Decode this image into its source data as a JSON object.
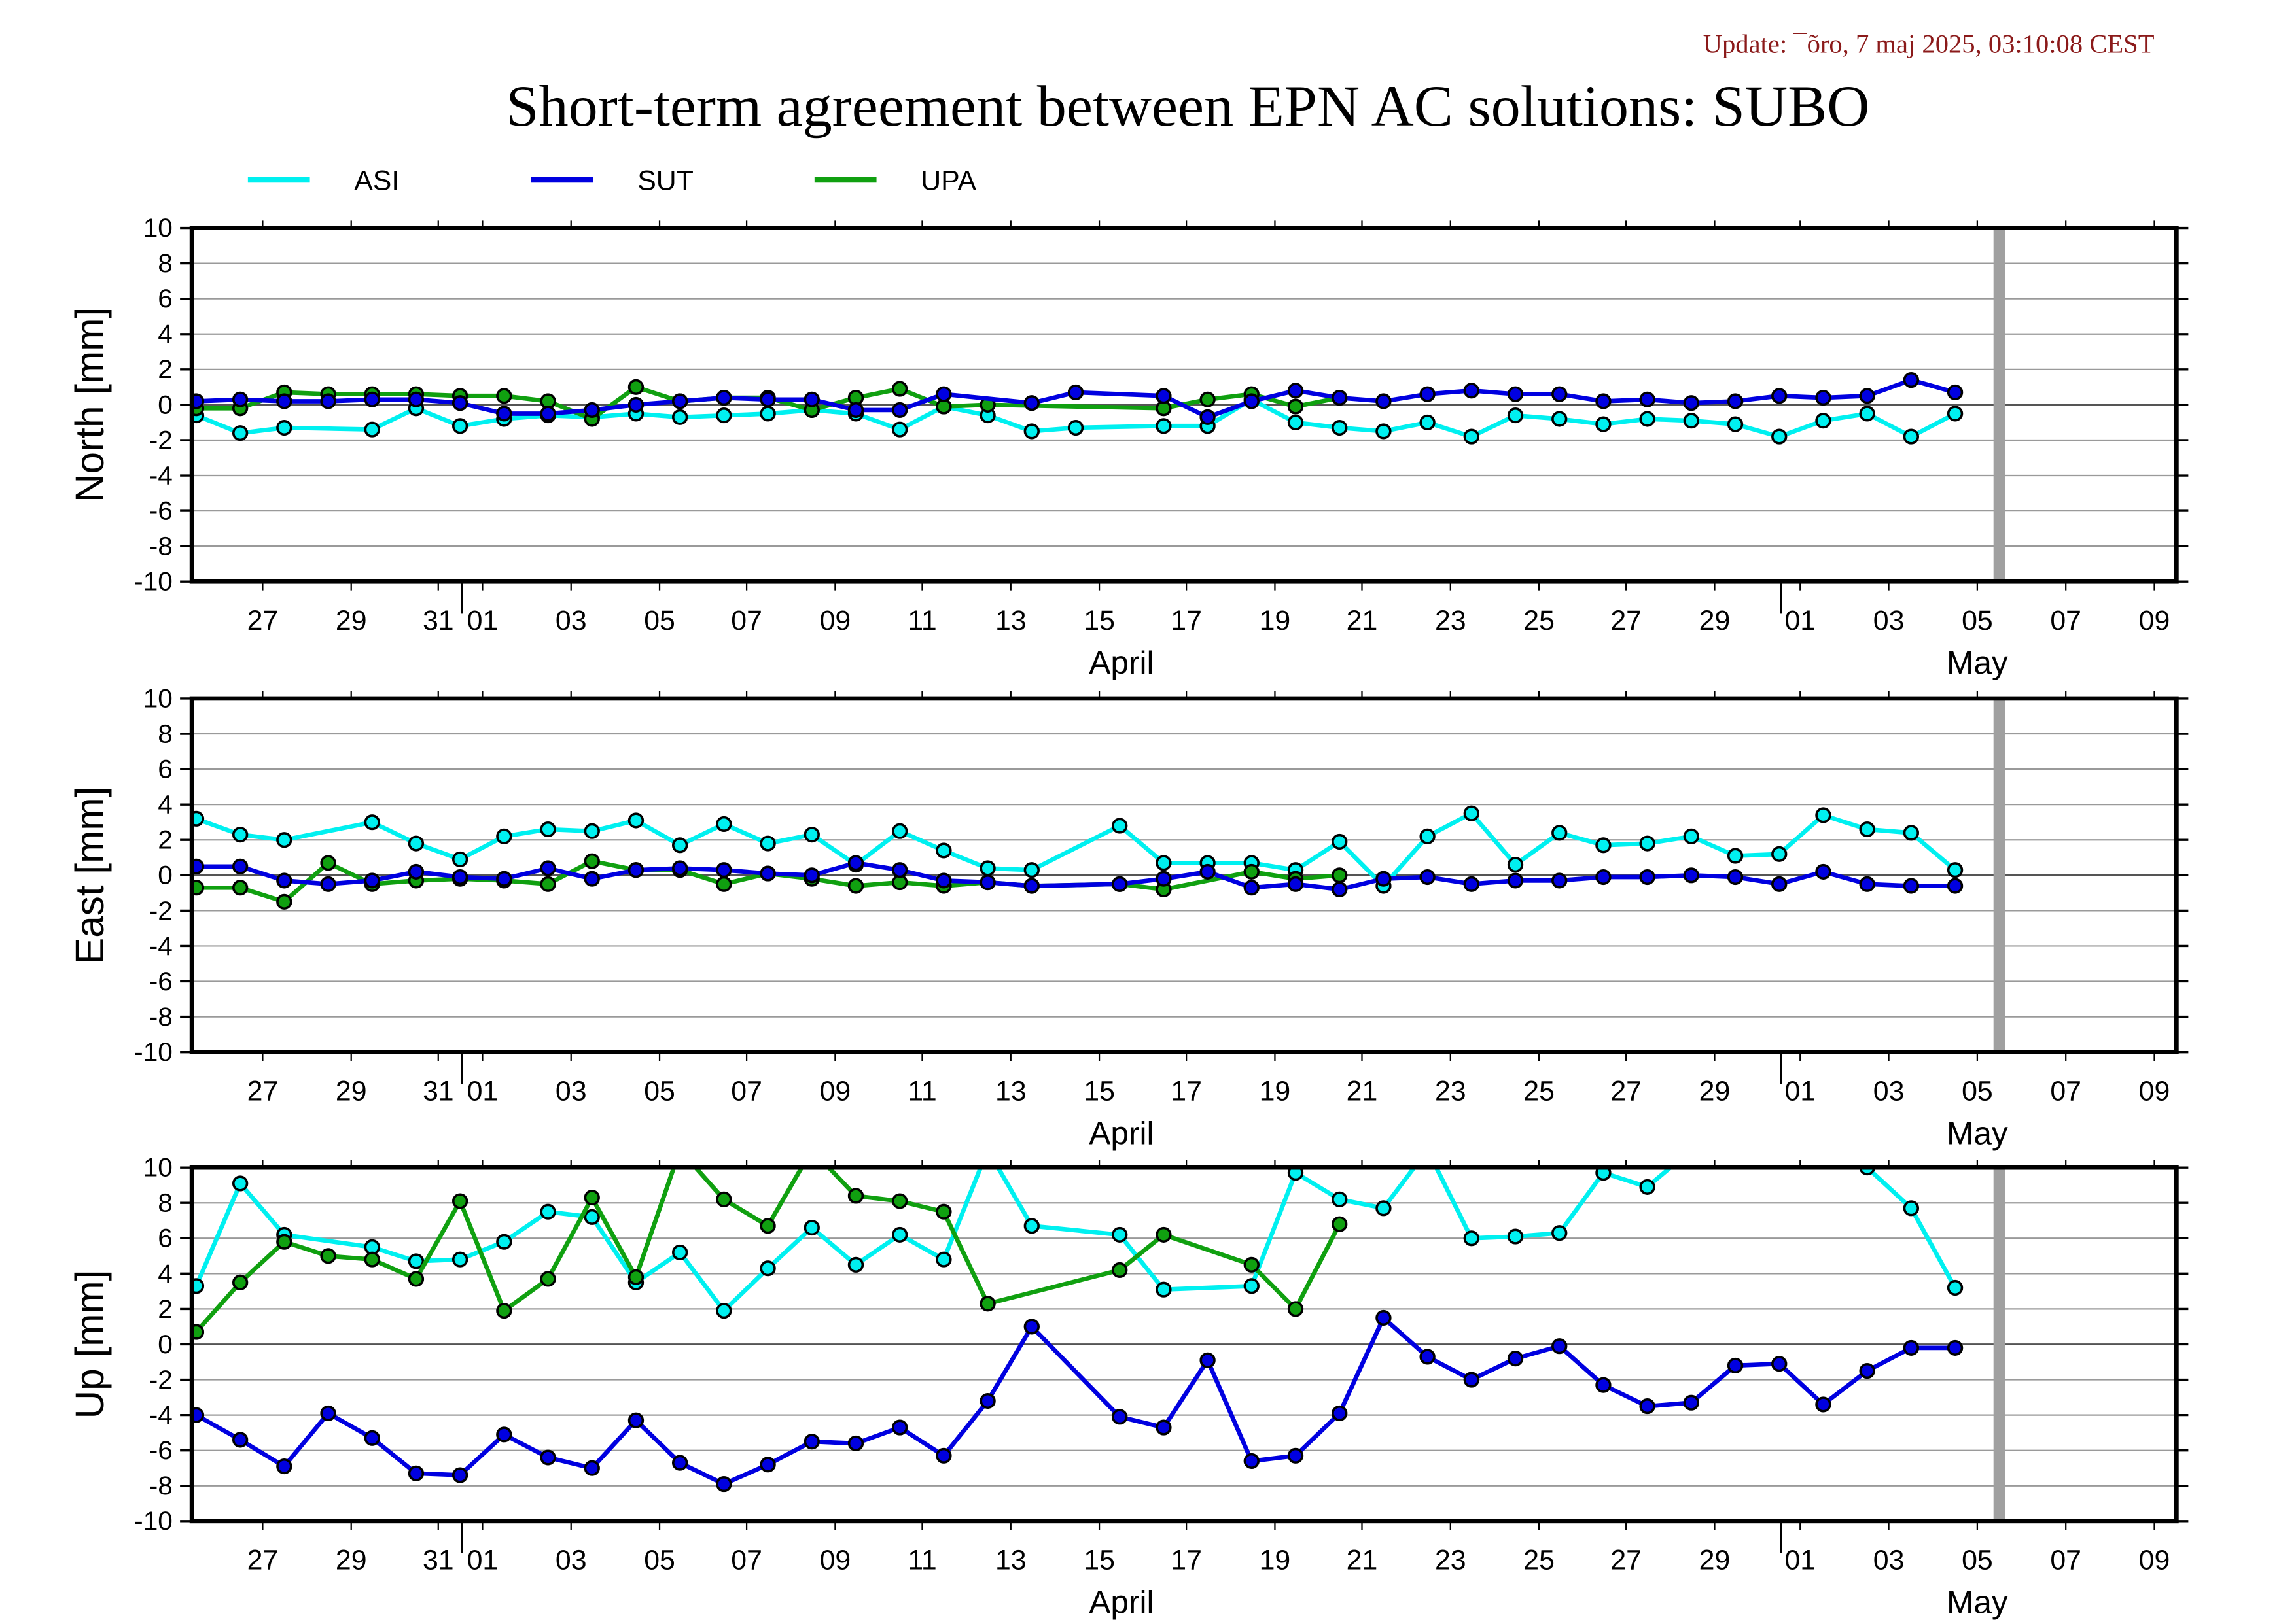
{
  "update_text": "Update: ¯õro, 7 maj 2025, 03:10:08 CEST",
  "title": "Short-term agreement between EPN AC solutions: SUBO",
  "colors": {
    "ASI": "#00f0f0",
    "SUT": "#0000e0",
    "UPA": "#10a010",
    "update": "#8b1a1a",
    "gray_bar": "#a0a0a0"
  },
  "legend": [
    {
      "name": "ASI",
      "color_key": "ASI"
    },
    {
      "name": "SUT",
      "color_key": "SUT"
    },
    {
      "name": "UPA",
      "color_key": "UPA"
    }
  ],
  "chart_data": [
    {
      "type": "line",
      "ylabel": "North [mm]",
      "ylim": [
        -10,
        10
      ],
      "yticks": [
        10,
        8,
        6,
        4,
        2,
        0,
        -2,
        -4,
        -6,
        -8,
        -10
      ],
      "xticks": [
        "27",
        "29",
        "31",
        "01",
        "03",
        "05",
        "07",
        "09",
        "11",
        "13",
        "15",
        "17",
        "19",
        "21",
        "23",
        "25",
        "27",
        "29",
        "01",
        "03",
        "05",
        "07",
        "09"
      ],
      "month_labels": [
        "April",
        "May"
      ],
      "series": [
        {
          "name": "ASI",
          "x": [
            0,
            1,
            2,
            4,
            5,
            6,
            7,
            8,
            9,
            10,
            11,
            12,
            13,
            14,
            15,
            16,
            17,
            18,
            19,
            20,
            22,
            23,
            24,
            25,
            26,
            27,
            28,
            29,
            30,
            31,
            32,
            33,
            34,
            35,
            36,
            37,
            38,
            39,
            40
          ],
          "y": [
            -0.6,
            -1.6,
            -1.3,
            -1.4,
            -0.2,
            -1.2,
            -0.8,
            -0.6,
            -0.7,
            -0.5,
            -0.7,
            -0.6,
            -0.5,
            -0.3,
            -0.5,
            -1.4,
            -0.1,
            -0.6,
            -1.5,
            -1.3,
            -1.2,
            -1.2,
            0.3,
            -1.0,
            -1.3,
            -1.5,
            -1.0,
            -1.8,
            -0.6,
            -0.8,
            -1.1,
            -0.8,
            -0.9,
            -1.1,
            -1.8,
            -0.9,
            -0.5,
            -1.8,
            -0.5
          ]
        },
        {
          "name": "SUT",
          "x": [
            0,
            1,
            2,
            3,
            4,
            5,
            6,
            7,
            8,
            9,
            10,
            11,
            12,
            13,
            14,
            15,
            16,
            17,
            19,
            20,
            22,
            23,
            24,
            25,
            26,
            27,
            28,
            29,
            30,
            31,
            32,
            33,
            34,
            35,
            36,
            37,
            38,
            39,
            40
          ],
          "y": [
            0.2,
            0.3,
            0.2,
            0.2,
            0.3,
            0.3,
            0.1,
            -0.5,
            -0.5,
            -0.3,
            0.0,
            0.2,
            0.4,
            0.3,
            0.3,
            -0.3,
            -0.3,
            0.6,
            0.1,
            0.7,
            0.5,
            -0.7,
            0.2,
            0.8,
            0.4,
            0.2,
            0.6,
            0.8,
            0.6,
            0.6,
            0.2,
            0.3,
            0.1,
            0.2,
            0.5,
            0.4,
            0.5,
            1.4,
            0.7
          ]
        },
        {
          "name": "UPA",
          "x": [
            0,
            1,
            2,
            3,
            4,
            5,
            6,
            7,
            8,
            9,
            10,
            11,
            12,
            13,
            14,
            15,
            16,
            17,
            18,
            22,
            23,
            24,
            25,
            26
          ],
          "y": [
            -0.2,
            -0.2,
            0.7,
            0.6,
            0.6,
            0.6,
            0.5,
            0.5,
            0.2,
            -0.8,
            1.0,
            0.2,
            0.4,
            0.4,
            -0.3,
            0.4,
            0.9,
            -0.1,
            0.0,
            -0.2,
            0.3,
            0.6,
            -0.1,
            0.4
          ]
        }
      ]
    },
    {
      "type": "line",
      "ylabel": "East [mm]",
      "ylim": [
        -10,
        10
      ],
      "yticks": [
        10,
        8,
        6,
        4,
        2,
        0,
        -2,
        -4,
        -6,
        -8,
        -10
      ],
      "xticks": [
        "27",
        "29",
        "31",
        "01",
        "03",
        "05",
        "07",
        "09",
        "11",
        "13",
        "15",
        "17",
        "19",
        "21",
        "23",
        "25",
        "27",
        "29",
        "01",
        "03",
        "05",
        "07",
        "09"
      ],
      "month_labels": [
        "April",
        "May"
      ],
      "series": [
        {
          "name": "ASI",
          "x": [
            0,
            1,
            2,
            4,
            5,
            6,
            7,
            8,
            9,
            10,
            11,
            12,
            13,
            14,
            15,
            16,
            17,
            18,
            19,
            21,
            22,
            23,
            24,
            25,
            26,
            27,
            28,
            29,
            30,
            31,
            32,
            33,
            34,
            35,
            36,
            37,
            38,
            39,
            40
          ],
          "y": [
            3.2,
            2.3,
            2.0,
            3.0,
            1.8,
            0.9,
            2.2,
            2.6,
            2.5,
            3.1,
            1.7,
            2.9,
            1.8,
            2.3,
            0.6,
            2.5,
            1.4,
            0.4,
            0.3,
            2.8,
            0.7,
            0.7,
            0.7,
            0.3,
            1.9,
            -0.6,
            2.2,
            3.5,
            0.6,
            2.4,
            1.7,
            1.8,
            2.2,
            1.1,
            1.2,
            3.4,
            2.6,
            2.4,
            0.3
          ]
        },
        {
          "name": "SUT",
          "x": [
            0,
            1,
            2,
            3,
            4,
            5,
            6,
            7,
            8,
            9,
            10,
            11,
            12,
            13,
            14,
            15,
            16,
            17,
            18,
            19,
            21,
            22,
            23,
            24,
            25,
            26,
            27,
            28,
            29,
            30,
            31,
            32,
            33,
            34,
            35,
            36,
            37,
            38,
            39,
            40
          ],
          "y": [
            0.5,
            0.5,
            -0.3,
            -0.5,
            -0.3,
            0.2,
            -0.1,
            -0.2,
            0.4,
            -0.2,
            0.3,
            0.4,
            0.3,
            0.1,
            0.0,
            0.7,
            0.3,
            -0.3,
            -0.4,
            -0.6,
            -0.5,
            -0.2,
            0.2,
            -0.7,
            -0.5,
            -0.8,
            -0.2,
            -0.1,
            -0.5,
            -0.3,
            -0.3,
            -0.1,
            -0.1,
            0.0,
            -0.1,
            -0.5,
            0.2,
            -0.5,
            -0.6,
            -0.6
          ]
        },
        {
          "name": "UPA",
          "x": [
            0,
            1,
            2,
            3,
            4,
            5,
            6,
            7,
            8,
            9,
            10,
            11,
            12,
            13,
            14,
            15,
            16,
            17,
            18,
            19,
            21,
            22,
            24,
            25,
            26
          ],
          "y": [
            -0.7,
            -0.7,
            -1.5,
            0.7,
            -0.5,
            -0.3,
            -0.2,
            -0.3,
            -0.5,
            0.8,
            0.3,
            0.3,
            -0.5,
            0.1,
            -0.2,
            -0.6,
            -0.4,
            -0.6,
            -0.4,
            -0.6,
            -0.5,
            -0.8,
            0.2,
            -0.2,
            0.0
          ]
        }
      ]
    },
    {
      "type": "line",
      "ylabel": "Up [mm]",
      "ylim": [
        -10,
        10
      ],
      "yticks": [
        10,
        8,
        6,
        4,
        2,
        0,
        -2,
        -4,
        -6,
        -8,
        -10
      ],
      "xticks": [
        "27",
        "29",
        "31",
        "01",
        "03",
        "05",
        "07",
        "09",
        "11",
        "13",
        "15",
        "17",
        "19",
        "21",
        "23",
        "25",
        "27",
        "29",
        "01",
        "03",
        "05",
        "07",
        "09"
      ],
      "month_labels": [
        "April",
        "May"
      ],
      "series": [
        {
          "name": "ASI",
          "x": [
            0,
            1,
            2,
            4,
            5,
            6,
            7,
            8,
            9,
            10,
            11,
            12,
            13,
            14,
            15,
            16,
            17,
            18,
            19,
            21,
            22,
            24,
            25,
            26,
            27,
            28,
            29,
            30,
            31,
            32,
            33,
            34,
            35,
            37,
            38,
            39,
            40
          ],
          "y": [
            3.3,
            9.1,
            6.2,
            5.5,
            4.7,
            4.8,
            5.8,
            7.5,
            7.2,
            3.5,
            5.2,
            1.9,
            4.3,
            6.6,
            4.5,
            6.2,
            4.8,
            11.0,
            6.7,
            6.2,
            3.1,
            3.3,
            9.7,
            8.2,
            7.7,
            11.0,
            6.0,
            6.1,
            6.3,
            9.7,
            8.9,
            11.0,
            11.0,
            11.0,
            10.0,
            7.7,
            3.2
          ]
        },
        {
          "name": "SUT",
          "x": [
            0,
            1,
            2,
            3,
            4,
            5,
            6,
            7,
            8,
            9,
            10,
            11,
            12,
            13,
            14,
            15,
            16,
            17,
            18,
            19,
            21,
            22,
            23,
            24,
            25,
            26,
            27,
            28,
            29,
            30,
            31,
            32,
            33,
            34,
            35,
            36,
            37,
            38,
            39,
            40
          ],
          "y": [
            -4.0,
            -5.4,
            -6.9,
            -3.9,
            -5.3,
            -7.3,
            -7.4,
            -5.1,
            -6.4,
            -7.0,
            -4.3,
            -6.7,
            -7.9,
            -6.8,
            -5.5,
            -5.6,
            -4.7,
            -6.3,
            -3.2,
            1.0,
            -4.1,
            -4.7,
            -0.9,
            -6.6,
            -6.3,
            -3.9,
            1.5,
            -0.7,
            -2.0,
            -0.8,
            -0.1,
            -2.3,
            -3.5,
            -3.3,
            -1.2,
            -1.1,
            -3.4,
            -1.5,
            -0.2,
            -0.2
          ]
        },
        {
          "name": "UPA",
          "x": [
            0,
            1,
            2,
            3,
            4,
            5,
            6,
            7,
            8,
            9,
            10,
            11,
            12,
            13,
            14,
            15,
            16,
            17,
            18,
            21,
            22,
            24,
            25,
            26
          ],
          "y": [
            0.7,
            3.5,
            5.8,
            5.0,
            4.8,
            3.7,
            8.1,
            1.9,
            3.7,
            8.3,
            3.8,
            11.0,
            8.2,
            6.7,
            11.0,
            8.4,
            8.1,
            7.5,
            2.3,
            4.2,
            6.2,
            4.5,
            2.0,
            6.8
          ]
        }
      ]
    }
  ]
}
